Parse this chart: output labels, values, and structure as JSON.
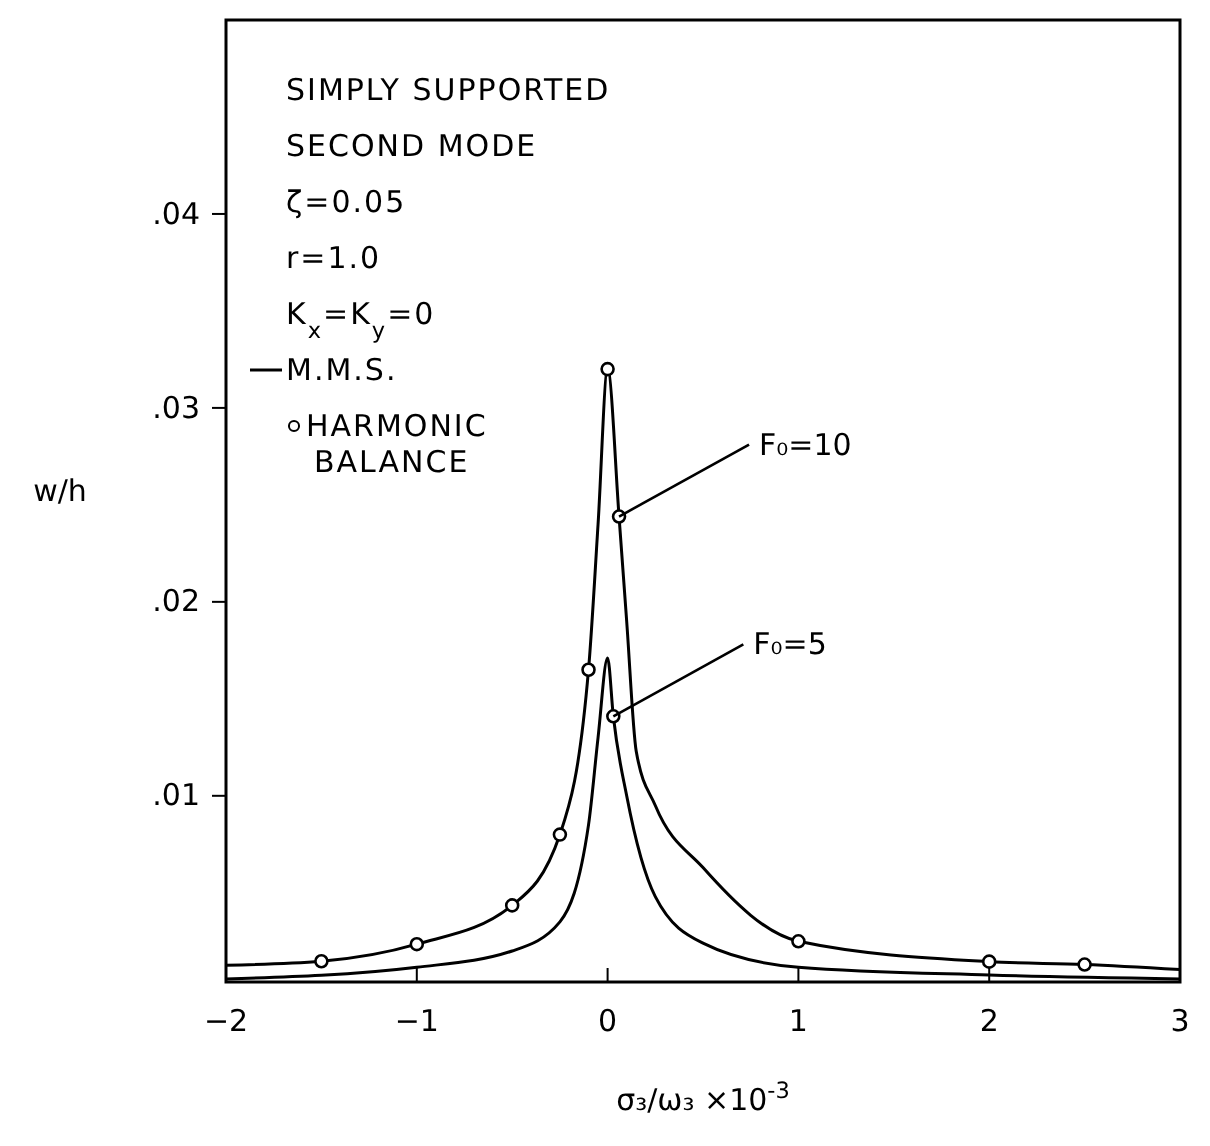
{
  "chart_data": {
    "type": "line",
    "xlabel": "σ₃/ω₃ ×10$^{-3}$",
    "ylabel": "w/h",
    "xlim": [
      -2,
      3
    ],
    "ylim": [
      0.0004,
      0.05
    ],
    "xticks": [
      {
        "value": -2,
        "label": "−2"
      },
      {
        "value": -1,
        "label": "−1"
      },
      0,
      1,
      2,
      3
    ],
    "yticks": [
      {
        "value": 0.01,
        "label": ".01"
      },
      {
        "value": 0.02,
        "label": ".02"
      },
      {
        "value": 0.03,
        "label": ".03"
      },
      {
        "value": 0.04,
        "label": ".04"
      }
    ],
    "grid": false,
    "legend": "top left",
    "line_style": "solid",
    "annotations": [
      "SIMPLY SUPPORTED",
      "SECOND MODE",
      "ζ=0.05",
      "r=1.0",
      "K$_{x}$=K$_{y}$=0",
      {
        "text": "F₀=10",
        "x": 0.06,
        "y": 0.0244
      },
      {
        "text": "F₀=5",
        "x": 0.03,
        "y": 0.0141
      }
    ],
    "series": [
      {
        "name": "M.M.S.",
        "color": "#000000",
        "x": [
          -2,
          -1.5,
          -1,
          -0.5,
          -0.25,
          -0.1,
          -0.05,
          0,
          0.06,
          0.1,
          0.15,
          0.25,
          0.5,
          1,
          2,
          2.5,
          3
        ],
        "values": [
          0.00127,
          0.00147,
          0.00235,
          0.00435,
          0.008,
          0.0165,
          0.024,
          0.032,
          0.0244,
          0.019,
          0.0123,
          0.0095,
          0.0063,
          0.0025,
          0.00145,
          0.0013,
          0.00104
        ]
      },
      {
        "color": "#000000",
        "x": [
          -2,
          -1,
          -0.5,
          -0.25,
          -0.1,
          -0.05,
          0,
          0.03,
          0.1,
          0.25,
          0.5,
          1,
          2,
          3
        ],
        "values": [
          0.00056,
          0.00116,
          0.002,
          0.0035,
          0.0085,
          0.013,
          0.0171,
          0.0141,
          0.01,
          0.0048,
          0.0024,
          0.00116,
          0.00076,
          0.00056
        ]
      },
      {
        "name": "HARMONIC BALANCE",
        "type": "scatter",
        "marker": "circle",
        "color": "#000000",
        "x": [
          -1.5,
          -1,
          -0.5,
          -0.25,
          -0.1,
          0,
          0.06,
          0.03,
          1,
          2,
          2.5
        ],
        "values": [
          0.00147,
          0.00235,
          0.00435,
          0.008,
          0.0165,
          0.032,
          0.0244,
          0.0141,
          0.0025,
          0.00145,
          0.0013
        ]
      }
    ]
  }
}
